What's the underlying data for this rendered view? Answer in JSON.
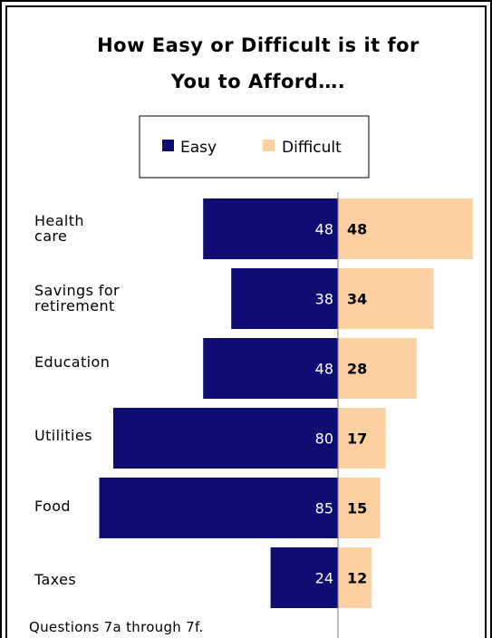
{
  "chart_data": {
    "type": "bar",
    "orientation": "diverging-horizontal",
    "title_lines": [
      "How Easy or Difficult is it for",
      "You to Afford…."
    ],
    "categories": [
      [
        "Health",
        "care"
      ],
      [
        "Savings for",
        "retirement"
      ],
      [
        "Education"
      ],
      [
        "Utilities"
      ],
      [
        "Food"
      ],
      [
        "Taxes"
      ]
    ],
    "series": [
      {
        "name": "Easy",
        "values": [
          48,
          38,
          48,
          80,
          85,
          24
        ],
        "color": "#0d0d73"
      },
      {
        "name": "Difficult",
        "values": [
          48,
          34,
          28,
          17,
          15,
          12
        ],
        "color": "#fcd0a1"
      }
    ],
    "legend_position": "top",
    "grid": false
  },
  "footnote": "Questions 7a through 7f."
}
